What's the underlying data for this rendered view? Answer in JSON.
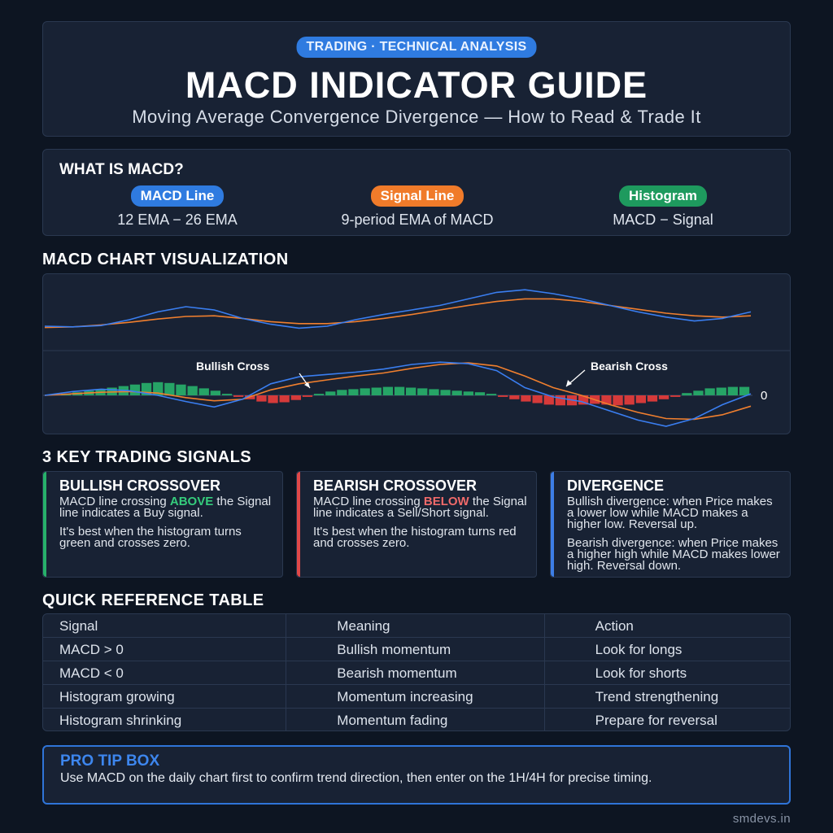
{
  "header": {
    "pill": "TRADING · TECHNICAL ANALYSIS",
    "title": "MACD INDICATOR GUIDE",
    "subtitle": "Moving Average Convergence Divergence — How to Read & Trade It"
  },
  "what": {
    "heading": "WHAT IS MACD?",
    "components": [
      {
        "label": "MACD Line",
        "desc": "12 EMA − 26 EMA",
        "color": "#2f7be0"
      },
      {
        "label": "Signal Line",
        "desc": "9-period EMA of MACD",
        "color": "#f07b2a"
      },
      {
        "label": "Histogram",
        "desc": "MACD − Signal",
        "color": "#1e9a5e"
      }
    ]
  },
  "chart_section": {
    "title": "MACD CHART VISUALIZATION"
  },
  "chart_data": {
    "type": "line",
    "annotations": [
      "Bullish Cross",
      "Bearish Cross"
    ],
    "zero_label": "0",
    "colors": {
      "macd": "#3a7ef0",
      "signal": "#f07f2e",
      "hist_pos": "#26a466",
      "hist_neg": "#d63a3a"
    },
    "price_panel": {
      "series": [
        {
          "values": [
            0.3,
            0.29,
            0.31,
            0.4,
            0.52,
            0.6,
            0.55,
            0.42,
            0.33,
            0.27,
            0.3,
            0.4,
            0.48,
            0.55,
            0.62,
            0.72,
            0.82,
            0.86,
            0.8,
            0.72,
            0.62,
            0.52,
            0.44,
            0.38,
            0.42,
            0.52
          ]
        },
        {
          "values": [
            0.28,
            0.29,
            0.32,
            0.36,
            0.41,
            0.45,
            0.46,
            0.42,
            0.37,
            0.34,
            0.34,
            0.37,
            0.42,
            0.48,
            0.55,
            0.62,
            0.68,
            0.72,
            0.72,
            0.68,
            0.62,
            0.56,
            0.5,
            0.46,
            0.44,
            0.46
          ]
        }
      ]
    },
    "macd_panel": {
      "series": [
        {
          "values": [
            0.0,
            0.05,
            0.08,
            0.06,
            0.0,
            -0.08,
            -0.15,
            -0.05,
            0.15,
            0.24,
            0.27,
            0.3,
            0.34,
            0.4,
            0.43,
            0.41,
            0.32,
            0.1,
            -0.02,
            -0.08,
            -0.2,
            -0.32,
            -0.4,
            -0.3,
            -0.12,
            0.02
          ]
        },
        {
          "values": [
            0.0,
            0.02,
            0.04,
            0.05,
            0.03,
            -0.03,
            -0.07,
            -0.05,
            0.07,
            0.15,
            0.2,
            0.25,
            0.29,
            0.35,
            0.4,
            0.42,
            0.38,
            0.25,
            0.1,
            0.0,
            -0.12,
            -0.22,
            -0.3,
            -0.31,
            -0.25,
            -0.14
          ]
        }
      ],
      "histogram": [
        0.02,
        0.04,
        0.06,
        0.08,
        0.1,
        0.12,
        0.14,
        0.16,
        0.17,
        0.16,
        0.14,
        0.12,
        0.09,
        0.06,
        0.02,
        -0.02,
        -0.05,
        -0.08,
        -0.1,
        -0.09,
        -0.06,
        -0.02,
        0.02,
        0.05,
        0.07,
        0.08,
        0.09,
        0.1,
        0.11,
        0.11,
        0.1,
        0.09,
        0.08,
        0.07,
        0.06,
        0.05,
        0.04,
        0.02,
        -0.02,
        -0.05,
        -0.08,
        -0.1,
        -0.12,
        -0.13,
        -0.13,
        -0.12,
        -0.11,
        -0.12,
        -0.13,
        -0.12,
        -0.1,
        -0.08,
        -0.05,
        -0.02,
        0.03,
        0.06,
        0.09,
        0.1,
        0.11,
        0.11
      ]
    }
  },
  "signals_section": {
    "title": "3 KEY TRADING SIGNALS",
    "cards": [
      {
        "title": "BULLISH CROSSOVER",
        "p1_pre": "MACD line crossing ",
        "p1_hl": "ABOVE",
        "p1_post": " the Signal line indicates a Buy signal.",
        "p2": "It's best when the histogram turns green and crosses zero."
      },
      {
        "title": "BEARISH CROSSOVER",
        "p1_pre": "MACD line crossing ",
        "p1_hl": "BELOW",
        "p1_post": " the Signal line indicates a Sell/Short signal.",
        "p2": "It's best when the histogram turns red and crosses zero."
      },
      {
        "title": "DIVERGENCE",
        "p1": "Bullish divergence: when Price makes a lower low while MACD makes a higher low. Reversal up.",
        "p2": "Bearish divergence: when Price makes a higher high while MACD makes lower high. Reversal down."
      }
    ]
  },
  "table_section": {
    "title": "QUICK REFERENCE TABLE",
    "headers": [
      "Signal",
      "Meaning",
      "Action"
    ],
    "rows": [
      [
        "MACD > 0",
        "Bullish momentum",
        "Look for longs"
      ],
      [
        "MACD < 0",
        "Bearish momentum",
        "Look for shorts"
      ],
      [
        "Histogram growing",
        "Momentum increasing",
        "Trend strengthening"
      ],
      [
        "Histogram shrinking",
        "Momentum fading",
        "Prepare for reversal"
      ]
    ]
  },
  "protip": {
    "title": "PRO TIP BOX",
    "body": "Use MACD on the daily chart first to confirm trend direction, then enter on the 1H/4H for precise timing."
  },
  "footer": "smdevs.in"
}
